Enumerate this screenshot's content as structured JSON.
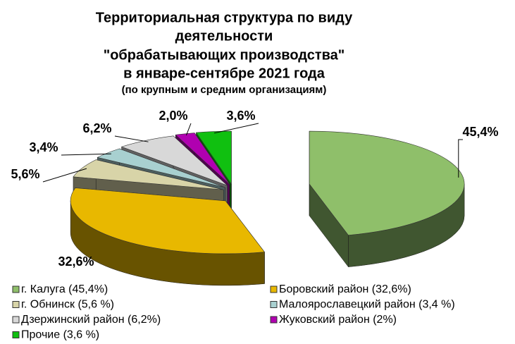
{
  "chart_data": {
    "type": "pie3d",
    "title": [
      "Территориальная структура по виду",
      "деятельности",
      "\"обрабатывающих производства\"",
      "в январе-сентябре 2021 года"
    ],
    "subtitle": "(по крупным и средним организациям)",
    "series": [
      {
        "name": "г. Калуга (45,4%)",
        "color": "#8fbf6a",
        "values": [
          45.4
        ],
        "value_labels": [
          "45,4%"
        ]
      },
      {
        "name": "Боровский район (32,6%)",
        "color": "#e8b800",
        "values": [
          32.6
        ],
        "value_labels": [
          "32,6%"
        ]
      },
      {
        "name": "г. Обнинск (5,6 %)",
        "color": "#d8d4a8",
        "values": [
          5.6
        ],
        "value_labels": [
          "5,6%"
        ]
      },
      {
        "name": "Малоярославецкий район (3,4 %)",
        "color": "#a8d0d0",
        "values": [
          3.4
        ],
        "value_labels": [
          "3,4%"
        ]
      },
      {
        "name": "Дзержинский район (6,2%)",
        "color": "#d8d8d8",
        "values": [
          6.2
        ],
        "value_labels": [
          "6,2%"
        ]
      },
      {
        "name": "Жуковский район (2%)",
        "color": "#b000b0",
        "values": [
          2.0
        ],
        "value_labels": [
          "2,0%"
        ]
      },
      {
        "name": "Прочие (3,6 %)",
        "color": "#10c010",
        "values": [
          3.6
        ],
        "value_labels": [
          "3,6%"
        ]
      }
    ]
  }
}
